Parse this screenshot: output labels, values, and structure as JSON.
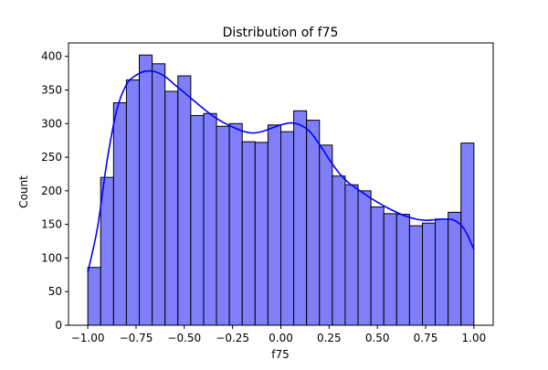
{
  "chart_data": {
    "type": "bar",
    "title": "Distribution of f75",
    "xlabel": "f75",
    "ylabel": "Count",
    "xlim": [
      -1.1,
      1.1
    ],
    "ylim": [
      0,
      420
    ],
    "xticks": [
      "−1.00",
      "−0.75",
      "−0.50",
      "−0.25",
      "0.00",
      "0.25",
      "0.50",
      "0.75",
      "1.00"
    ],
    "xtick_values": [
      -1.0,
      -0.75,
      -0.5,
      -0.25,
      0.0,
      0.25,
      0.5,
      0.75,
      1.0
    ],
    "yticks": [
      "0",
      "50",
      "100",
      "150",
      "200",
      "250",
      "300",
      "350",
      "400"
    ],
    "ytick_values": [
      0,
      50,
      100,
      150,
      200,
      250,
      300,
      350,
      400
    ],
    "bin_start": -1.0,
    "bin_end": 1.0,
    "values": [
      86,
      220,
      331,
      365,
      402,
      389,
      348,
      371,
      312,
      315,
      296,
      300,
      273,
      272,
      298,
      288,
      319,
      305,
      268,
      222,
      209,
      200,
      176,
      166,
      165,
      148,
      152,
      158,
      168,
      271
    ],
    "kde": {
      "x": [
        -1.0,
        -0.95,
        -0.9,
        -0.85,
        -0.8,
        -0.75,
        -0.7,
        -0.65,
        -0.6,
        -0.55,
        -0.5,
        -0.45,
        -0.4,
        -0.35,
        -0.3,
        -0.25,
        -0.2,
        -0.15,
        -0.1,
        -0.05,
        0.0,
        0.05,
        0.1,
        0.15,
        0.2,
        0.25,
        0.3,
        0.35,
        0.4,
        0.45,
        0.5,
        0.55,
        0.6,
        0.65,
        0.7,
        0.75,
        0.8,
        0.85,
        0.9,
        0.95,
        1.0
      ],
      "y": [
        79,
        145,
        245,
        320,
        358,
        372,
        378,
        377,
        370,
        358,
        346,
        334,
        322,
        311,
        302,
        295,
        289,
        286,
        288,
        293,
        298,
        301,
        298,
        288,
        269,
        247,
        227,
        212,
        202,
        192,
        183,
        175,
        168,
        162,
        158,
        156,
        157,
        158,
        156,
        143,
        113
      ]
    },
    "colors": {
      "bar_fill": "#7f7ffc",
      "bar_edge": "#000000",
      "kde_line": "#0000ff"
    },
    "grid": false,
    "legend": "none"
  }
}
